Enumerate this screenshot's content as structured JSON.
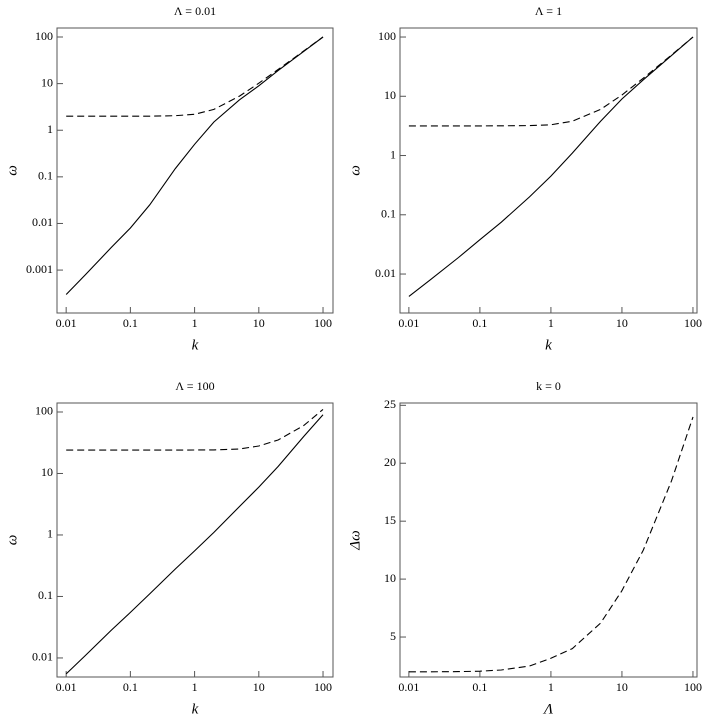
{
  "chart_data": [
    {
      "type": "line",
      "title": "Λ = 0.01",
      "x_label": "k",
      "y_label": "ω",
      "xscale": "log",
      "yscale": "log",
      "x": [
        0.01,
        0.02,
        0.05,
        0.1,
        0.2,
        0.5,
        1,
        2,
        5,
        10,
        20,
        50,
        100
      ],
      "series": [
        {
          "color": "#000000",
          "line_style": "solid",
          "values": [
            0.0003,
            0.0008,
            0.003,
            0.008,
            0.025,
            0.15,
            0.5,
            1.5,
            4.5,
            9,
            19,
            49,
            100
          ]
        },
        {
          "color": "#000000",
          "line_style": "dashed",
          "values": [
            2,
            2,
            2,
            2,
            2,
            2.05,
            2.2,
            2.8,
            5.4,
            10.2,
            20.1,
            50,
            100
          ]
        }
      ],
      "xlim": [
        0.0072,
        143
      ],
      "ylim": [
        0.00012,
        156
      ],
      "xticks": [
        0.01,
        0.1,
        1,
        10,
        100
      ],
      "yticks": [
        0.001,
        0.01,
        0.1,
        1,
        10,
        100
      ]
    },
    {
      "type": "line",
      "title": "Λ = 1",
      "x_label": "k",
      "y_label": "ω",
      "xscale": "log",
      "yscale": "log",
      "x": [
        0.01,
        0.02,
        0.05,
        0.1,
        0.2,
        0.5,
        1,
        2,
        5,
        10,
        20,
        50,
        100
      ],
      "series": [
        {
          "color": "#000000",
          "line_style": "solid",
          "values": [
            0.0042,
            0.008,
            0.019,
            0.038,
            0.075,
            0.2,
            0.45,
            1.1,
            3.8,
            9,
            19,
            49,
            100
          ]
        },
        {
          "color": "#000000",
          "line_style": "dashed",
          "values": [
            3.16,
            3.16,
            3.16,
            3.16,
            3.17,
            3.2,
            3.3,
            3.8,
            6,
            10.5,
            20.2,
            50,
            100
          ]
        }
      ],
      "xlim": [
        0.0075,
        114
      ],
      "ylim": [
        0.0022,
        142
      ],
      "xticks": [
        0.01,
        0.1,
        1,
        10,
        100
      ],
      "yticks": [
        0.01,
        0.1,
        1,
        10,
        100
      ]
    },
    {
      "type": "line",
      "title": "Λ = 100",
      "x_label": "k",
      "y_label": "ω",
      "xscale": "log",
      "yscale": "log",
      "x": [
        0.01,
        0.02,
        0.05,
        0.1,
        0.2,
        0.5,
        1,
        2,
        5,
        10,
        20,
        50,
        100
      ],
      "series": [
        {
          "color": "#000000",
          "line_style": "solid",
          "values": [
            0.0055,
            0.011,
            0.028,
            0.055,
            0.11,
            0.28,
            0.55,
            1.1,
            2.9,
            6,
            13,
            40,
            90
          ]
        },
        {
          "color": "#000000",
          "line_style": "dashed",
          "values": [
            24,
            24,
            24,
            24,
            24,
            24,
            24.1,
            24.2,
            25,
            28,
            35,
            60,
            110
          ]
        }
      ],
      "xlim": [
        0.0072,
        143
      ],
      "ylim": [
        0.0049,
        140
      ],
      "xticks": [
        0.01,
        0.1,
        1,
        10,
        100
      ],
      "yticks": [
        0.01,
        0.1,
        1,
        10,
        100
      ]
    },
    {
      "type": "line",
      "title": "k = 0",
      "x_label": "Λ",
      "y_label": "Δω",
      "xscale": "log",
      "yscale": "linear",
      "x": [
        0.01,
        0.02,
        0.05,
        0.1,
        0.2,
        0.5,
        1,
        2,
        5,
        10,
        20,
        50,
        100
      ],
      "series": [
        {
          "color": "#000000",
          "line_style": "dashed",
          "values": [
            2.0,
            2.0,
            2.02,
            2.05,
            2.15,
            2.5,
            3.16,
            4.0,
            6.2,
            9,
            12.5,
            18.5,
            24
          ]
        }
      ],
      "xlim": [
        0.0075,
        114
      ],
      "ylim": [
        1.55,
        25.2
      ],
      "xticks": [
        0.01,
        0.1,
        1,
        10,
        100
      ],
      "yticks": [
        5,
        10,
        15,
        20,
        25
      ]
    }
  ]
}
